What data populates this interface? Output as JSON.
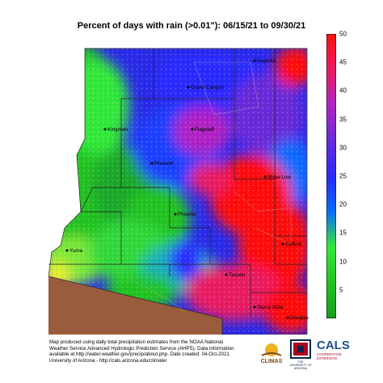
{
  "title": "Percent of days with rain (>0.01\"): 06/15/21 to 09/30/21",
  "colorbar": {
    "ticks": [
      "50",
      "45",
      "40",
      "35",
      "30",
      "25",
      "20",
      "15",
      "10",
      "5"
    ],
    "colors": [
      "#1a9d1f",
      "#22c322",
      "#33e83a",
      "#0a6bff",
      "#2a2aff",
      "#6a2ad8",
      "#b024c4",
      "#e81b63",
      "#ff1010"
    ]
  },
  "cities": {
    "kayenta": "Kayenta",
    "grand_canyon": "Grand Canyon",
    "flagstaff": "Flagstaff",
    "prescott": "Prescott",
    "show_low": "Show Low",
    "phoenix": "Phoenix",
    "yuma": "Yuma",
    "safford": "Safford",
    "tucson": "Tucson",
    "sierra_vista": "Sierra Vista",
    "douglas": "Douglas",
    "kingman": "Kingman"
  },
  "footer": {
    "line1": "Map produced using daily total precipitation estimates from the NOAA National",
    "line2": "Weather Service Advanced Hydrologic Prediction Service (AHPS). Data information",
    "line3": "available at http://water.weather.gov/precip/about.php. Date created: 04-Oct-2021",
    "line4": "University of Arizona - http://cals.arizona.edu/climate/"
  },
  "logos": {
    "climas": "CLIMAS",
    "ua": "THE UNIVERSITY OF ARIZONA",
    "cals": "CALS",
    "cals_sub1": "COOPERATIVE",
    "cals_sub2": "EXTENSION"
  }
}
